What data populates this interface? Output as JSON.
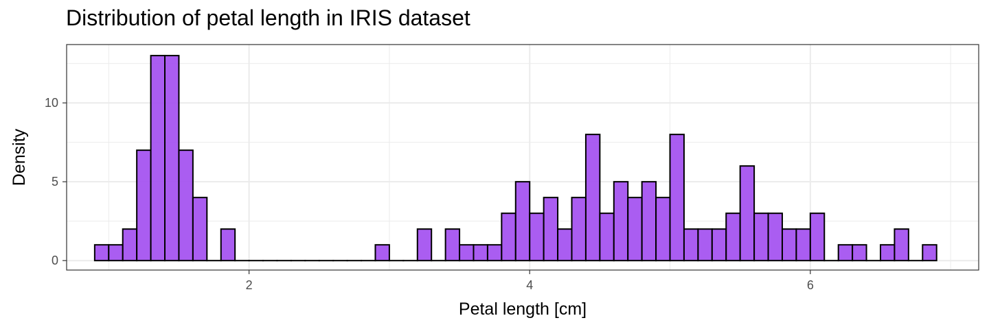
{
  "chart_data": {
    "type": "bar",
    "title": "Distribution of petal length in IRIS dataset",
    "xlabel": "Petal length [cm]",
    "ylabel": "Density",
    "xlim": [
      0.7,
      7.2
    ],
    "ylim": [
      -0.6,
      13.7
    ],
    "x_ticks": [
      2,
      4,
      6
    ],
    "x_tick_labels": [
      "2",
      "4",
      "6"
    ],
    "y_ticks": [
      0,
      5,
      10
    ],
    "y_tick_labels": [
      "0",
      "5",
      "10"
    ],
    "grid": true,
    "legend": "none",
    "bin_start": 0.9,
    "bin_width": 0.1,
    "values": [
      1,
      1,
      2,
      7,
      13,
      13,
      7,
      4,
      0,
      2,
      0,
      0,
      0,
      0,
      0,
      0,
      0,
      0,
      0,
      0,
      1,
      0,
      0,
      2,
      0,
      2,
      1,
      1,
      1,
      3,
      5,
      3,
      4,
      2,
      4,
      8,
      3,
      5,
      4,
      5,
      4,
      8,
      2,
      2,
      2,
      3,
      6,
      3,
      3,
      2,
      2,
      3,
      0,
      1,
      1,
      0,
      1,
      2,
      0,
      1
    ],
    "colors": {
      "fill": "#a34ff0",
      "stroke": "#000000",
      "grid": "#ebebeb",
      "panel_border": "#333333"
    }
  }
}
